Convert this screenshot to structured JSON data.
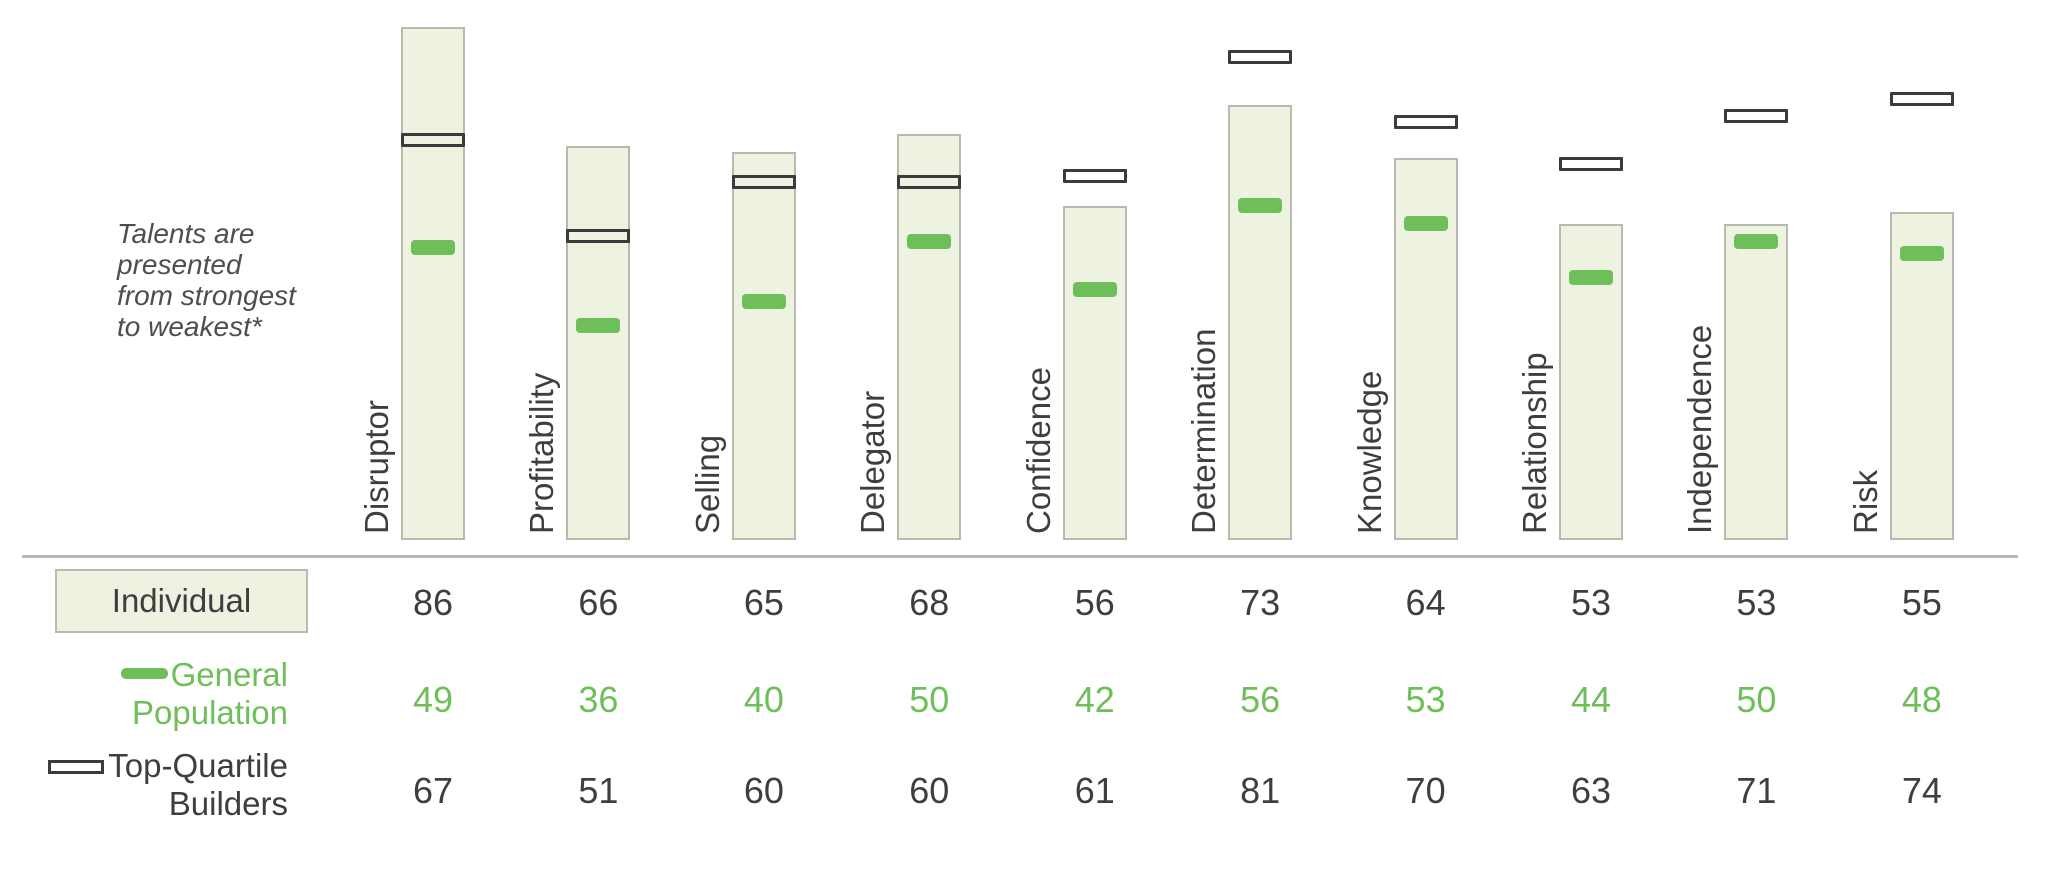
{
  "note": "Talents are\npresented\nfrom strongest\nto weakest*",
  "legend": {
    "individual_label": "Individual",
    "general_population_label": "General\nPopulation",
    "top_quartile_label": "Top-Quartile\nBuilders"
  },
  "colors": {
    "bar_fill": "#eef2e0",
    "bar_border": "#b7bbae",
    "green": "#6ebf5a",
    "dark_text": "#3e3e3e",
    "marker_outline": "#3b3b3b",
    "separator": "#b9b9b9"
  },
  "chart_data": {
    "type": "bar",
    "orientation": "vertical",
    "value_range": [
      0,
      100
    ],
    "grid": false,
    "note": "Talents are presented from strongest to weakest*",
    "categories": [
      "Disruptor",
      "Profitability",
      "Selling",
      "Delegator",
      "Confidence",
      "Determination",
      "Knowledge",
      "Relationship",
      "Independence",
      "Risk"
    ],
    "series": [
      {
        "name": "Individual",
        "style": "filled-bar",
        "color": "#eef2e0",
        "values": [
          86,
          66,
          65,
          68,
          56,
          73,
          64,
          53,
          53,
          55
        ]
      },
      {
        "name": "General Population",
        "style": "green-dash-marker",
        "color": "#6ebf5a",
        "values": [
          49,
          36,
          40,
          50,
          42,
          56,
          53,
          44,
          50,
          48
        ]
      },
      {
        "name": "Top-Quartile Builders",
        "style": "outlined-marker",
        "color": "#3b3b3b",
        "values": [
          67,
          51,
          60,
          60,
          61,
          81,
          70,
          63,
          71,
          74
        ]
      }
    ]
  }
}
